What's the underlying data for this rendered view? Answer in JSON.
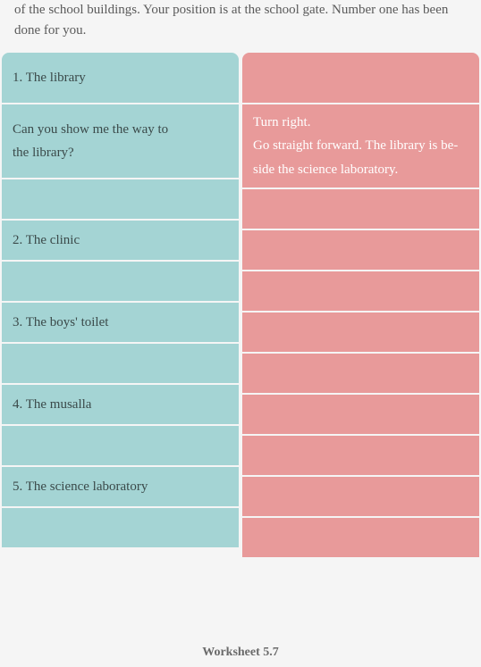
{
  "instruction": "of the school buildings. Your position is at the school gate. Number one has been done for you.",
  "footer": "Worksheet 5.7",
  "colors": {
    "left_bg": "#a4d4d4",
    "right_bg": "#e89a9a",
    "left_text": "#3b4a4a",
    "right_text": "#ffffff",
    "page_bg": "#f5f5f5",
    "body_text": "#5a5a5a"
  },
  "rows": [
    {
      "left": "1.   The library",
      "right": "",
      "cls": "h-hdr"
    },
    {
      "left_lines": [
        "Can you show me the way to",
        "the library?"
      ],
      "right_lines": [
        "Turn right.",
        "Go straight forward. The library is be-",
        "side the science laboratory."
      ],
      "cls": "h-ans"
    },
    {
      "left": "",
      "right": "",
      "cls": "h-sm"
    },
    {
      "left": "2.   The clinic",
      "right": "",
      "cls": "h-sm"
    },
    {
      "left": "",
      "right": "",
      "cls": "h-sm"
    },
    {
      "left": "3.   The boys' toilet",
      "right": "",
      "cls": "h-sm"
    },
    {
      "left": "",
      "right": "",
      "cls": "h-sm"
    },
    {
      "left": "4.   The musalla",
      "right": "",
      "cls": "h-sm"
    },
    {
      "left": "",
      "right": "",
      "cls": "h-sm"
    },
    {
      "left": "5.   The science laboratory",
      "right": "",
      "cls": "h-sm"
    },
    {
      "left": "",
      "right": "",
      "cls": "h-sm"
    }
  ]
}
